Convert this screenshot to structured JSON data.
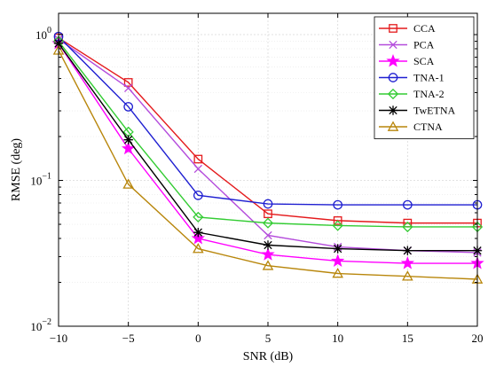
{
  "chart_data": {
    "type": "line",
    "xlabel": "SNR (dB)",
    "ylabel": "RMSE (deg)",
    "xlim": [
      -10,
      20
    ],
    "ylim": [
      0.01,
      1.4
    ],
    "yscale": "log",
    "x_ticks": [
      -10,
      -5,
      0,
      5,
      10,
      15,
      20
    ],
    "x_tick_labels": [
      "−10",
      "−5",
      "0",
      "5",
      "10",
      "15",
      "20"
    ],
    "y_ticks": [
      0.01,
      0.1,
      1
    ],
    "y_tick_bases": [
      "10",
      "10",
      "10"
    ],
    "y_tick_exponents": [
      "−2",
      "−1",
      "0"
    ],
    "grid": true,
    "legend_position": "top-right",
    "x": [
      -10,
      -5,
      0,
      5,
      10,
      15,
      20
    ],
    "series": [
      {
        "name": "CCA",
        "color": "#e41a1c",
        "marker": "square",
        "values": [
          0.95,
          0.47,
          0.14,
          0.059,
          0.053,
          0.051,
          0.051
        ]
      },
      {
        "name": "PCA",
        "color": "#b44bdc",
        "marker": "x",
        "values": [
          0.93,
          0.43,
          0.12,
          0.042,
          0.035,
          0.033,
          0.032
        ]
      },
      {
        "name": "SCA",
        "color": "#ff00ff",
        "marker": "star",
        "values": [
          0.87,
          0.165,
          0.04,
          0.031,
          0.028,
          0.027,
          0.027
        ]
      },
      {
        "name": "TNA-1",
        "color": "#1f1fd1",
        "marker": "circle",
        "values": [
          0.97,
          0.32,
          0.079,
          0.069,
          0.068,
          0.068,
          0.068
        ]
      },
      {
        "name": "TNA-2",
        "color": "#33cc33",
        "marker": "diamond",
        "values": [
          0.9,
          0.215,
          0.056,
          0.051,
          0.049,
          0.048,
          0.048
        ]
      },
      {
        "name": "TwETNA",
        "color": "#000000",
        "marker": "asterisk",
        "values": [
          0.87,
          0.19,
          0.044,
          0.036,
          0.034,
          0.033,
          0.033
        ]
      },
      {
        "name": "CTNA",
        "color": "#b8860b",
        "marker": "triangle",
        "values": [
          0.78,
          0.094,
          0.034,
          0.026,
          0.023,
          0.022,
          0.021
        ]
      }
    ]
  }
}
